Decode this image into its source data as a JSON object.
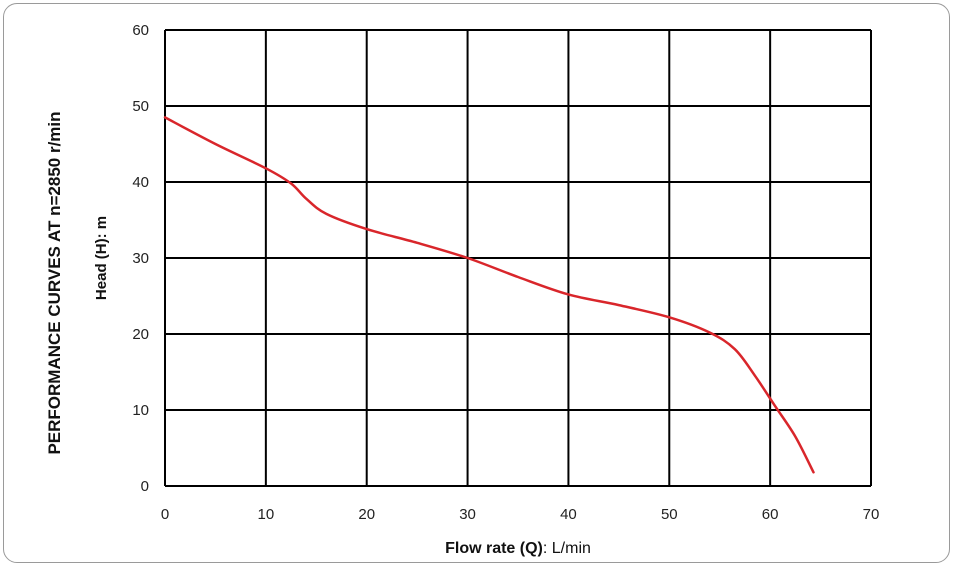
{
  "chart_data": {
    "type": "line",
    "side_title": "PERFORMANCE CURVES AT n=2850 r/min",
    "xlabel_bold": "Flow rate (Q)",
    "xlabel_rest": ": L/min",
    "ylabel": "Head (H): m",
    "xlim": [
      0,
      70
    ],
    "ylim": [
      0,
      60
    ],
    "x_ticks": [
      0,
      10,
      20,
      30,
      40,
      50,
      60,
      70
    ],
    "y_ticks": [
      0,
      10,
      20,
      30,
      40,
      50,
      60
    ],
    "grid": true,
    "series": [
      {
        "color": "#d9262b",
        "x": [
          0,
          5,
          10,
          12.5,
          14,
          16,
          20,
          25,
          30,
          35,
          40,
          45,
          50,
          54,
          56.5,
          58.5,
          60.5,
          62.5,
          64.3
        ],
        "y": [
          48.5,
          45,
          41.8,
          39.8,
          37.8,
          35.8,
          33.8,
          32,
          30,
          27.5,
          25.2,
          23.8,
          22.2,
          20.2,
          18,
          14.5,
          10.5,
          6.5,
          1.8
        ]
      }
    ]
  }
}
